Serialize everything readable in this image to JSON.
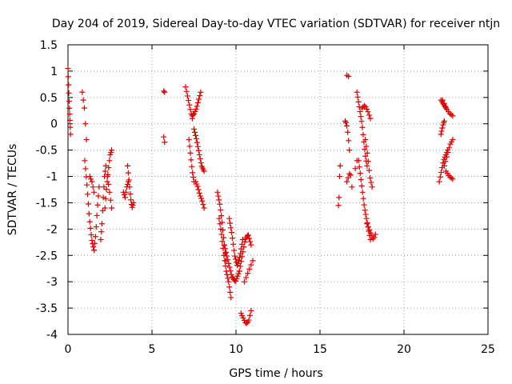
{
  "chart_data": {
    "type": "scatter",
    "title": "Day 204 of 2019, Sidereal Day-to-day VTEC variation (SDTVAR) for receiver ntjn",
    "xlabel": "GPS time / hours",
    "ylabel": "SDTVAR / TECUs",
    "xlim": [
      0,
      25
    ],
    "ylim": [
      -4,
      1.5
    ],
    "xticks": [
      "0",
      "5",
      "10",
      "15",
      "20",
      "25"
    ],
    "yticks": [
      "-4",
      "-3.5",
      "-3",
      "-2.5",
      "-2",
      "-1.5",
      "-1",
      "-0.5",
      "0",
      "0.5",
      "1",
      "1.5"
    ],
    "grid": true,
    "marker": "+",
    "color": "#e00000",
    "segments": [
      {
        "x0": 0.0,
        "x1": 0.15,
        "y": [
          1.05,
          0.7,
          0.35,
          0.1,
          -0.2
        ],
        "n": 10
      },
      {
        "x0": 0.85,
        "x1": 1.1,
        "y": [
          0.6,
          0.3,
          -0.3
        ],
        "n": 5
      },
      {
        "x0": 1.0,
        "x1": 1.55,
        "y": [
          -0.7,
          -1.2,
          -1.8,
          -2.2,
          -2.4
        ],
        "n": 14
      },
      {
        "x0": 1.3,
        "x1": 1.55,
        "y": [
          -1.0,
          -1.1,
          -1.3
        ],
        "n": 5
      },
      {
        "x0": 1.55,
        "x1": 1.85,
        "y": [
          -2.4,
          -2.1,
          -1.6,
          -1.2
        ],
        "n": 8
      },
      {
        "x0": 1.95,
        "x1": 2.25,
        "y": [
          -2.2,
          -1.9,
          -1.4,
          -1.0,
          -0.8
        ],
        "n": 9
      },
      {
        "x0": 2.2,
        "x1": 2.6,
        "y": [
          -1.6,
          -1.2,
          -0.9,
          -0.6,
          -0.5
        ],
        "n": 10
      },
      {
        "x0": 2.35,
        "x1": 2.6,
        "y": [
          -1.0,
          -1.3,
          -1.6
        ],
        "n": 5
      },
      {
        "x0": 3.3,
        "x1": 3.6,
        "y": [
          -1.3,
          -1.4,
          -1.2,
          -1.1
        ],
        "n": 7
      },
      {
        "x0": 3.55,
        "x1": 3.9,
        "y": [
          -0.8,
          -1.1,
          -1.4,
          -1.6,
          -1.5
        ],
        "n": 10
      },
      {
        "x0": 5.7,
        "x1": 5.75,
        "y": [
          -0.25,
          -0.35
        ],
        "n": 2
      },
      {
        "x0": 5.7,
        "x1": 5.75,
        "y": [
          0.62,
          0.6
        ],
        "n": 2
      },
      {
        "x0": 7.0,
        "x1": 7.4,
        "y": [
          0.7,
          0.5,
          0.3,
          0.1
        ],
        "n": 8
      },
      {
        "x0": 7.2,
        "x1": 7.5,
        "y": [
          -0.3,
          -0.6,
          -0.9,
          -1.1
        ],
        "n": 8
      },
      {
        "x0": 7.4,
        "x1": 7.9,
        "y": [
          0.15,
          0.2,
          0.3,
          0.45,
          0.6
        ],
        "n": 10
      },
      {
        "x0": 7.5,
        "x1": 8.1,
        "y": [
          -0.1,
          -0.3,
          -0.55,
          -0.8,
          -0.9
        ],
        "n": 14
      },
      {
        "x0": 7.6,
        "x1": 8.1,
        "y": [
          -1.1,
          -1.2,
          -1.35,
          -1.45,
          -1.6
        ],
        "n": 10
      },
      {
        "x0": 8.9,
        "x1": 9.4,
        "y": [
          -1.3,
          -1.5,
          -1.8,
          -2.2,
          -2.6
        ],
        "n": 12
      },
      {
        "x0": 9.0,
        "x1": 9.7,
        "y": [
          -1.8,
          -2.1,
          -2.5,
          -2.8,
          -3.0,
          -3.3
        ],
        "n": 16
      },
      {
        "x0": 9.3,
        "x1": 10.2,
        "y": [
          -2.3,
          -2.6,
          -2.9,
          -3.0,
          -2.8
        ],
        "n": 18
      },
      {
        "x0": 9.6,
        "x1": 10.4,
        "y": [
          -1.8,
          -2.1,
          -2.5,
          -2.7,
          -2.5,
          -2.2
        ],
        "n": 18
      },
      {
        "x0": 10.2,
        "x1": 10.9,
        "y": [
          -2.8,
          -2.5,
          -2.2,
          -2.1,
          -2.3
        ],
        "n": 14
      },
      {
        "x0": 10.3,
        "x1": 10.9,
        "y": [
          -3.6,
          -3.7,
          -3.8,
          -3.75,
          -3.55
        ],
        "n": 10
      },
      {
        "x0": 10.5,
        "x1": 11.0,
        "y": [
          -3.0,
          -2.8,
          -2.6
        ],
        "n": 6
      },
      {
        "x0": 16.1,
        "x1": 16.2,
        "y": [
          -1.55,
          -1.4,
          -1.0,
          -0.8
        ],
        "n": 4
      },
      {
        "x0": 16.5,
        "x1": 16.75,
        "y": [
          0.05,
          0.0,
          -0.2,
          -0.5
        ],
        "n": 6
      },
      {
        "x0": 16.6,
        "x1": 16.7,
        "y": [
          0.92,
          0.9
        ],
        "n": 2
      },
      {
        "x0": 16.6,
        "x1": 16.9,
        "y": [
          -1.1,
          -1.0,
          -0.9,
          -1.2
        ],
        "n": 5
      },
      {
        "x0": 17.1,
        "x1": 17.2,
        "y": [
          -0.85,
          -0.7
        ],
        "n": 2
      },
      {
        "x0": 17.2,
        "x1": 17.8,
        "y": [
          0.6,
          0.4,
          0.2,
          0.0,
          -0.3,
          -0.6,
          -0.8
        ],
        "n": 14
      },
      {
        "x0": 17.3,
        "x1": 18.0,
        "y": [
          -0.7,
          -1.0,
          -1.3,
          -1.6,
          -1.8,
          -2.0,
          -2.2
        ],
        "n": 16
      },
      {
        "x0": 17.5,
        "x1": 18.0,
        "y": [
          0.3,
          0.35,
          0.25,
          0.1
        ],
        "n": 8
      },
      {
        "x0": 17.7,
        "x1": 18.1,
        "y": [
          -0.3,
          -0.6,
          -1.0,
          -1.2
        ],
        "n": 8
      },
      {
        "x0": 17.8,
        "x1": 18.3,
        "y": [
          -1.9,
          -2.0,
          -2.1,
          -2.2,
          -2.1
        ],
        "n": 8
      },
      {
        "x0": 22.2,
        "x1": 22.5,
        "y": [
          0.45,
          0.4,
          0.35,
          0.3
        ],
        "n": 6
      },
      {
        "x0": 22.3,
        "x1": 22.9,
        "y": [
          0.45,
          0.3,
          0.2,
          0.15
        ],
        "n": 8
      },
      {
        "x0": 22.2,
        "x1": 22.4,
        "y": [
          -0.2,
          -0.1,
          0.0,
          0.05
        ],
        "n": 6
      },
      {
        "x0": 22.1,
        "x1": 22.6,
        "y": [
          -1.1,
          -0.9,
          -0.7,
          -0.6,
          -0.5
        ],
        "n": 10
      },
      {
        "x0": 22.4,
        "x1": 22.9,
        "y": [
          -0.8,
          -0.6,
          -0.4,
          -0.3
        ],
        "n": 8
      },
      {
        "x0": 22.5,
        "x1": 22.9,
        "y": [
          -0.9,
          -1.0,
          -1.05
        ],
        "n": 6
      }
    ]
  }
}
